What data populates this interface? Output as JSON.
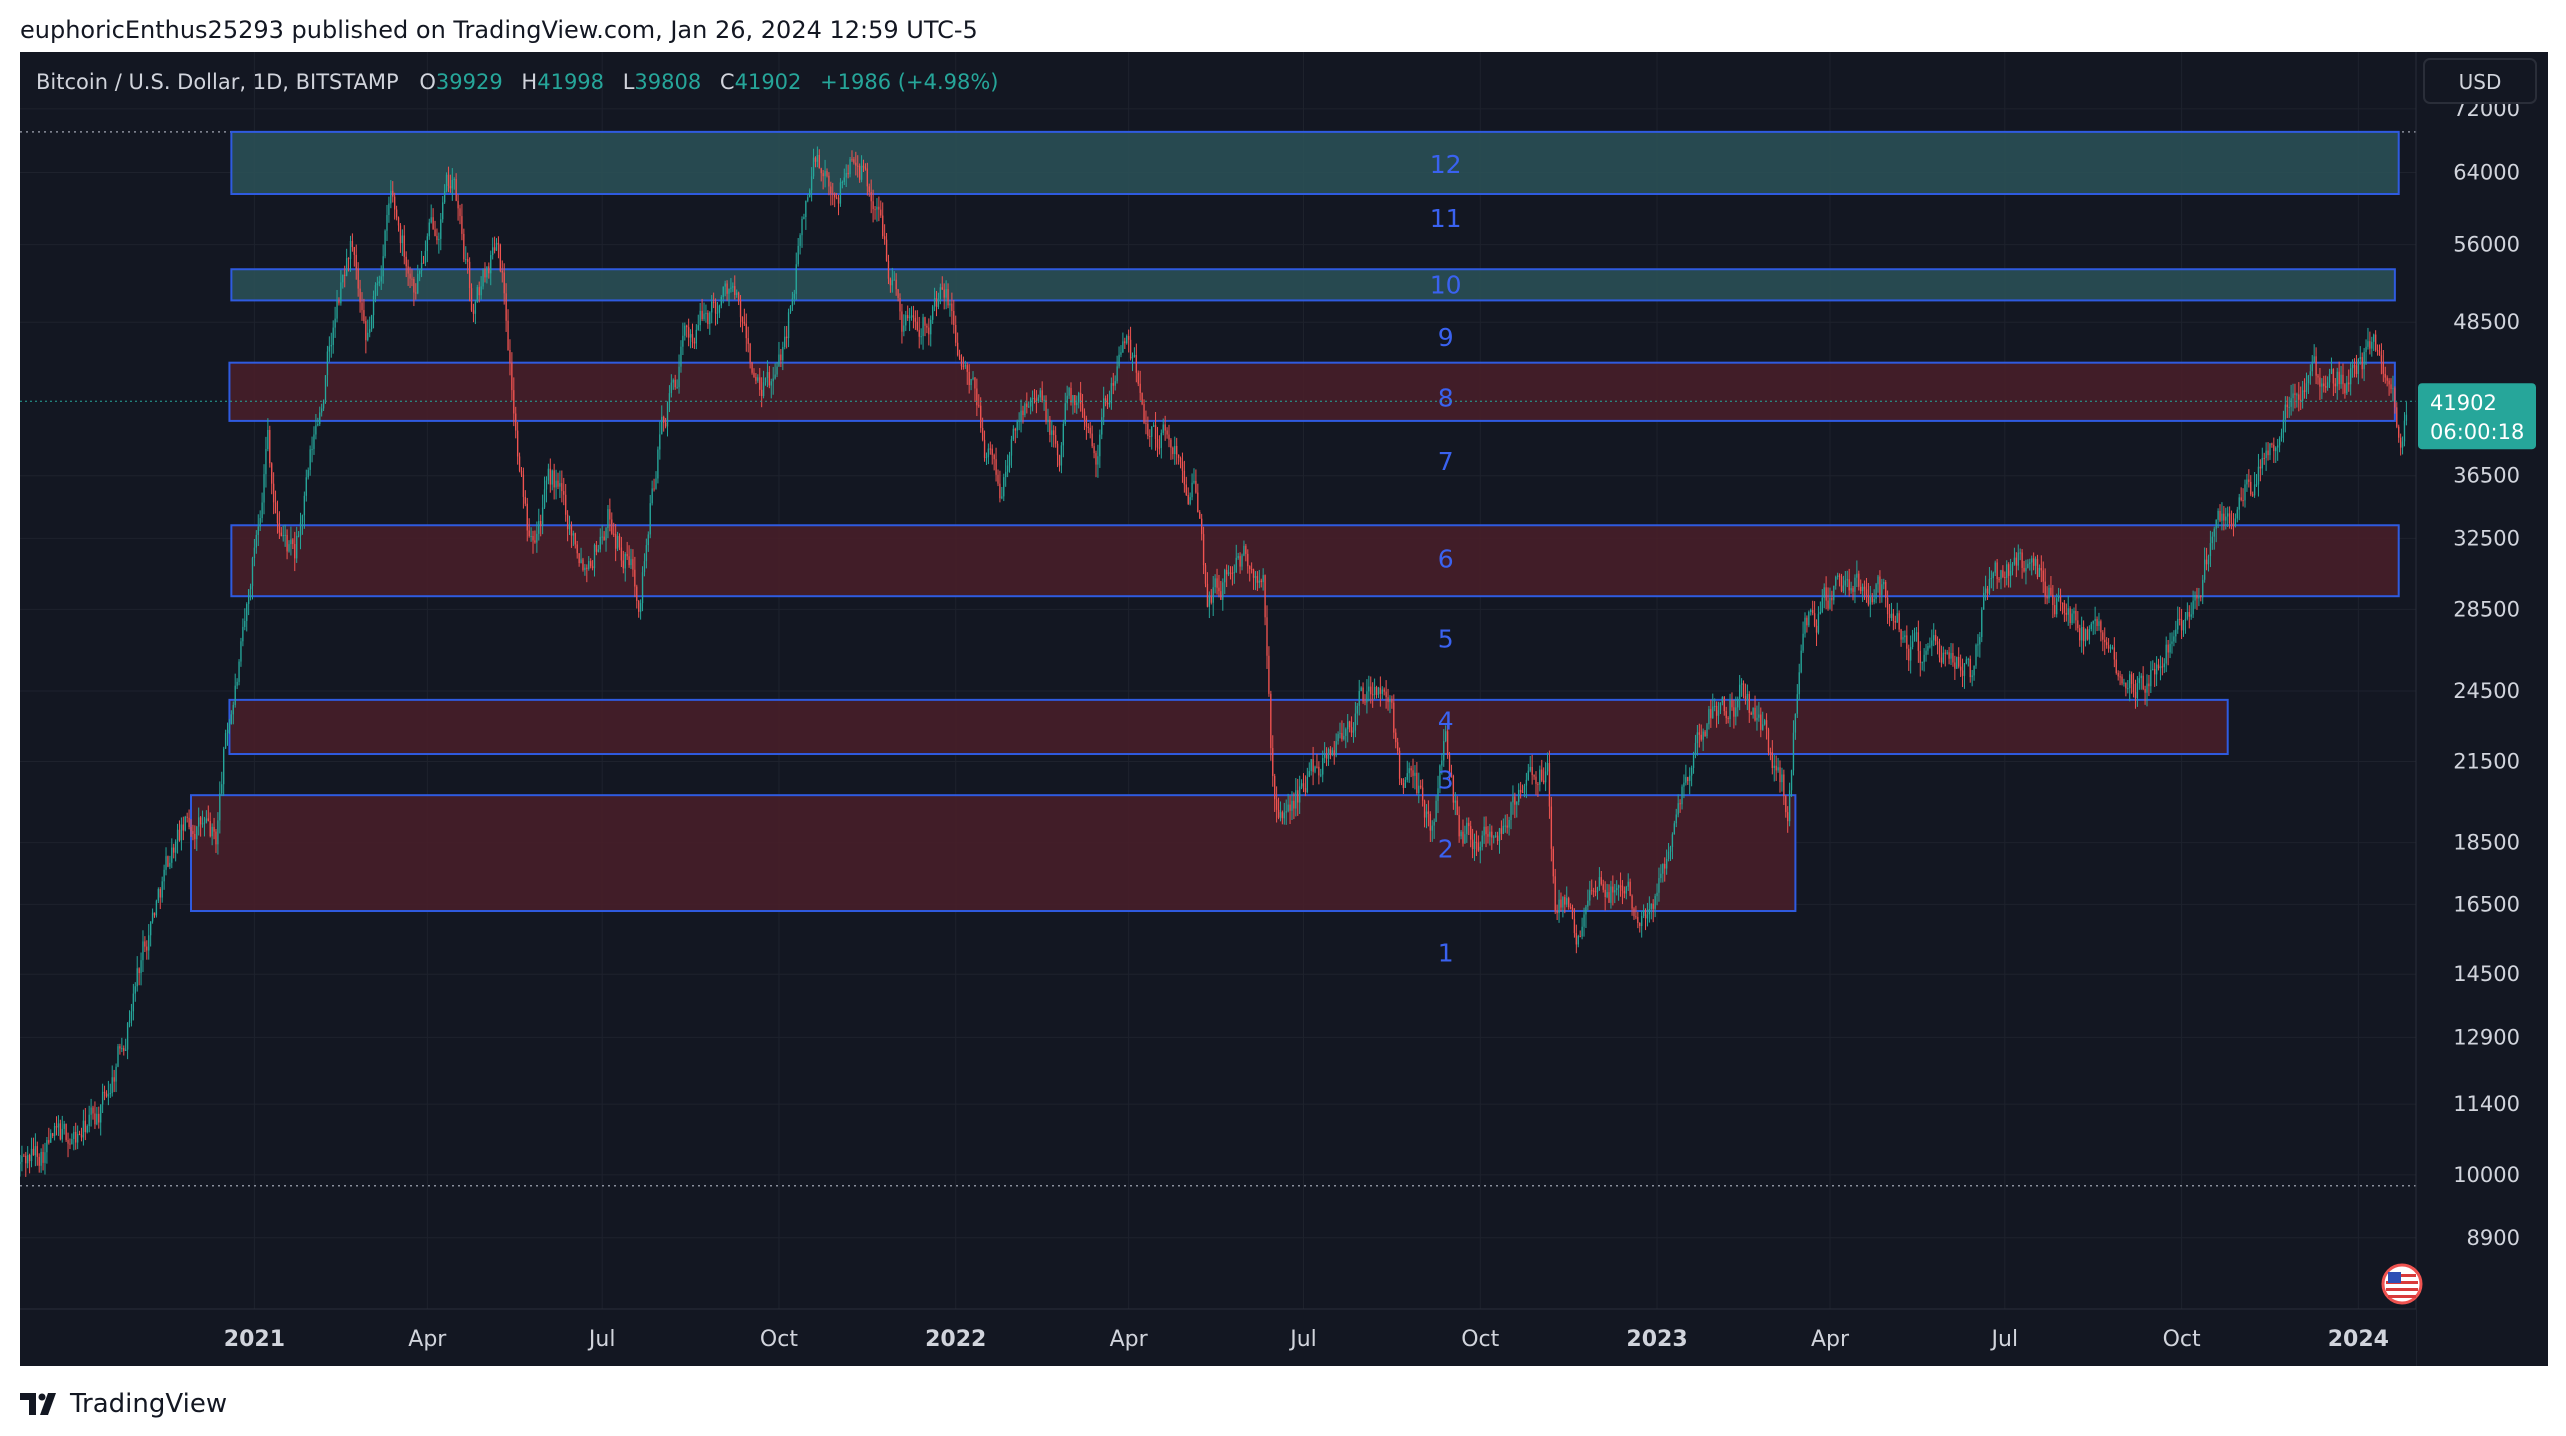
{
  "header": {
    "publish_line": "euphoricEnthus25293 published on TradingView.com, Jan 26, 2024 12:59 UTC-5"
  },
  "footer": {
    "brand": "TradingView",
    "logo_icon": "tradingview-logo-icon"
  },
  "legend": {
    "symbol": "Bitcoin / U.S. Dollar, 1D, BITSTAMP",
    "open_label": "O",
    "open": "39929",
    "high_label": "H",
    "high": "41998",
    "low_label": "L",
    "low": "39808",
    "close_label": "C",
    "close": "41902",
    "change": "+1986 (+4.98%)"
  },
  "currency_button": "USD",
  "price_badge": {
    "price": "41902",
    "countdown": "06:00:18"
  },
  "colors": {
    "background": "#131722",
    "grid": "#1e222d",
    "up": "#26a69a",
    "down": "#ef5350",
    "zone_border": "#2f5be0",
    "zone_label": "#3a62f0",
    "green_zone_fill": "#2b5258",
    "red_zone_fill": "#4a1f29",
    "axis_text": "#d1d4dc",
    "badge": "#26a69a"
  },
  "chart_data": {
    "type": "candlestick",
    "title": "Bitcoin / U.S. Dollar, 1D, BITSTAMP",
    "y_scale": "log",
    "ylim": [
      7800,
      80000
    ],
    "x_range": [
      "2020-09-01",
      "2024-01-31"
    ],
    "y_ticks": [
      72000,
      64000,
      56000,
      48500,
      36500,
      32500,
      28500,
      24500,
      21500,
      18500,
      16500,
      14500,
      12900,
      11400,
      10000,
      8900
    ],
    "x_ticks": [
      {
        "date": "2021-01-01",
        "label": "2021",
        "major": true
      },
      {
        "date": "2021-04-01",
        "label": "Apr",
        "major": false
      },
      {
        "date": "2021-07-01",
        "label": "Jul",
        "major": false
      },
      {
        "date": "2021-10-01",
        "label": "Oct",
        "major": false
      },
      {
        "date": "2022-01-01",
        "label": "2022",
        "major": true
      },
      {
        "date": "2022-04-01",
        "label": "Apr",
        "major": false
      },
      {
        "date": "2022-07-01",
        "label": "Jul",
        "major": false
      },
      {
        "date": "2022-10-01",
        "label": "Oct",
        "major": false
      },
      {
        "date": "2023-01-01",
        "label": "2023",
        "major": true
      },
      {
        "date": "2023-04-01",
        "label": "Apr",
        "major": false
      },
      {
        "date": "2023-07-01",
        "label": "Jul",
        "major": false
      },
      {
        "date": "2023-10-01",
        "label": "Oct",
        "major": false
      },
      {
        "date": "2024-01-01",
        "label": "2024",
        "major": true
      }
    ],
    "price_path": [
      [
        "2020-09-01",
        10200
      ],
      [
        "2020-09-15",
        10600
      ],
      [
        "2020-10-01",
        10700
      ],
      [
        "2020-10-15",
        11400
      ],
      [
        "2020-10-25",
        13000
      ],
      [
        "2020-11-05",
        15500
      ],
      [
        "2020-11-20",
        18500
      ],
      [
        "2020-12-01",
        19300
      ],
      [
        "2020-12-12",
        18500
      ],
      [
        "2020-12-17",
        22500
      ],
      [
        "2020-12-27",
        27000
      ],
      [
        "2021-01-08",
        40000
      ],
      [
        "2021-01-12",
        34000
      ],
      [
        "2021-01-22",
        31000
      ],
      [
        "2021-02-08",
        45000
      ],
      [
        "2021-02-20",
        56000
      ],
      [
        "2021-02-28",
        45000
      ],
      [
        "2021-03-13",
        61000
      ],
      [
        "2021-03-25",
        52500
      ],
      [
        "2021-04-14",
        63500
      ],
      [
        "2021-04-25",
        49000
      ],
      [
        "2021-05-08",
        58000
      ],
      [
        "2021-05-12",
        50000
      ],
      [
        "2021-05-19",
        36500
      ],
      [
        "2021-05-23",
        33500
      ],
      [
        "2021-06-05",
        36000
      ],
      [
        "2021-06-22",
        31500
      ],
      [
        "2021-07-05",
        34000
      ],
      [
        "2021-07-20",
        29800
      ],
      [
        "2021-08-01",
        40000
      ],
      [
        "2021-08-14",
        47000
      ],
      [
        "2021-09-06",
        52000
      ],
      [
        "2021-09-21",
        42000
      ],
      [
        "2021-09-30",
        43500
      ],
      [
        "2021-10-15",
        60000
      ],
      [
        "2021-10-20",
        66000
      ],
      [
        "2021-10-28",
        60000
      ],
      [
        "2021-11-10",
        67500
      ],
      [
        "2021-11-25",
        57000
      ],
      [
        "2021-12-04",
        49000
      ],
      [
        "2021-12-27",
        50500
      ],
      [
        "2022-01-10",
        42000
      ],
      [
        "2022-01-24",
        35500
      ],
      [
        "2022-02-10",
        44500
      ],
      [
        "2022-02-24",
        37000
      ],
      [
        "2022-03-01",
        43500
      ],
      [
        "2022-03-15",
        39000
      ],
      [
        "2022-03-29",
        47500
      ],
      [
        "2022-04-11",
        40500
      ],
      [
        "2022-04-26",
        38500
      ],
      [
        "2022-05-05",
        36000
      ],
      [
        "2022-05-12",
        29000
      ],
      [
        "2022-05-30",
        31500
      ],
      [
        "2022-06-10",
        29500
      ],
      [
        "2022-06-14",
        22000
      ],
      [
        "2022-06-18",
        19000
      ],
      [
        "2022-07-08",
        21500
      ],
      [
        "2022-07-30",
        24000
      ],
      [
        "2022-08-14",
        24500
      ],
      [
        "2022-08-20",
        21200
      ],
      [
        "2022-09-06",
        19000
      ],
      [
        "2022-09-13",
        22500
      ],
      [
        "2022-09-20",
        19000
      ],
      [
        "2022-10-10",
        19200
      ],
      [
        "2022-10-29",
        20800
      ],
      [
        "2022-11-05",
        21000
      ],
      [
        "2022-11-09",
        16500
      ],
      [
        "2022-11-21",
        15800
      ],
      [
        "2022-12-10",
        17200
      ],
      [
        "2022-12-31",
        16500
      ],
      [
        "2023-01-14",
        20800
      ],
      [
        "2023-01-29",
        23700
      ],
      [
        "2023-02-16",
        24500
      ],
      [
        "2023-03-10",
        20000
      ],
      [
        "2023-03-18",
        27500
      ],
      [
        "2023-04-12",
        30300
      ],
      [
        "2023-04-30",
        29300
      ],
      [
        "2023-05-12",
        26500
      ],
      [
        "2023-06-14",
        25200
      ],
      [
        "2023-06-21",
        30000
      ],
      [
        "2023-07-13",
        31300
      ],
      [
        "2023-08-17",
        26500
      ],
      [
        "2023-09-11",
        25200
      ],
      [
        "2023-10-01",
        27800
      ],
      [
        "2023-10-23",
        33500
      ],
      [
        "2023-11-01",
        35000
      ],
      [
        "2023-11-15",
        37500
      ],
      [
        "2023-12-05",
        44000
      ],
      [
        "2023-12-20",
        43000
      ],
      [
        "2024-01-11",
        46500
      ],
      [
        "2024-01-23",
        39500
      ],
      [
        "2024-01-26",
        41900
      ]
    ],
    "zones": [
      {
        "label": "12",
        "low": 61500,
        "high": 69000,
        "start": "2020-12-20",
        "end": "2024-01-22",
        "color": "green"
      },
      {
        "label": "10",
        "low": 50500,
        "high": 53500,
        "start": "2020-12-20",
        "end": "2024-01-20",
        "color": "green"
      },
      {
        "label": "8",
        "low": 40400,
        "high": 45000,
        "start": "2020-12-19",
        "end": "2024-01-20",
        "color": "red"
      },
      {
        "label": "6",
        "low": 29200,
        "high": 33300,
        "start": "2020-12-20",
        "end": "2024-01-22",
        "color": "red"
      },
      {
        "label": "4",
        "low": 21800,
        "high": 24100,
        "start": "2020-12-19",
        "end": "2023-10-25",
        "color": "red"
      },
      {
        "label": "2",
        "low": 16300,
        "high": 20200,
        "start": "2020-11-29",
        "end": "2023-03-14",
        "color": "red"
      }
    ],
    "zone_labels": [
      {
        "label": "12",
        "price": 65000
      },
      {
        "label": "11",
        "price": 58800
      },
      {
        "label": "10",
        "price": 52000
      },
      {
        "label": "9",
        "price": 47200
      },
      {
        "label": "8",
        "price": 42200
      },
      {
        "label": "7",
        "price": 37500
      },
      {
        "label": "6",
        "price": 31300
      },
      {
        "label": "5",
        "price": 27000
      },
      {
        "label": "4",
        "price": 23200
      },
      {
        "label": "3",
        "price": 20800
      },
      {
        "label": "2",
        "price": 18300
      },
      {
        "label": "1",
        "price": 15100
      }
    ],
    "zone_label_date": "2022-09-13",
    "dotted_levels": [
      69000,
      9800
    ],
    "last_price": 41902
  }
}
